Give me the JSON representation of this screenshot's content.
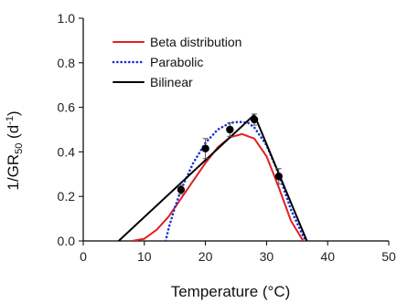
{
  "chart_data": {
    "type": "line",
    "xlabel": "Temperature (°C)",
    "ylabel_main": "1/GR",
    "ylabel_sub": "50",
    "ylabel_unit": " (d",
    "ylabel_sup": "-1",
    "ylabel_close": ")",
    "xlim": [
      0,
      50
    ],
    "ylim": [
      0,
      1.0
    ],
    "x_ticks": [
      0,
      10,
      20,
      30,
      40,
      50
    ],
    "x_tick_labels": [
      "0",
      "10",
      "20",
      "30",
      "40",
      "50"
    ],
    "y_ticks": [
      0.0,
      0.2,
      0.4,
      0.6,
      0.8,
      1.0
    ],
    "y_tick_labels": [
      "0.0",
      "0.2",
      "0.4",
      "0.6",
      "0.8",
      "1.0"
    ],
    "grid": false,
    "legend_position": "top-left",
    "series": [
      {
        "name": "Beta distribution",
        "style": "solid",
        "color": "#e02020",
        "x": [
          8,
          10,
          12,
          14,
          16,
          18,
          20,
          22,
          24,
          26,
          28,
          30,
          32,
          34,
          36
        ],
        "y": [
          0.0,
          0.01,
          0.05,
          0.11,
          0.19,
          0.27,
          0.35,
          0.42,
          0.465,
          0.48,
          0.46,
          0.38,
          0.24,
          0.09,
          0.0
        ]
      },
      {
        "name": "Parabolic",
        "style": "dotted",
        "color": "#1a2fd6",
        "x": [
          13.5,
          14,
          15,
          16,
          18,
          20,
          22,
          24,
          25.5,
          27,
          28,
          30,
          32,
          34,
          36,
          36.5
        ],
        "y": [
          0.0,
          0.06,
          0.15,
          0.23,
          0.35,
          0.44,
          0.5,
          0.53,
          0.535,
          0.53,
          0.51,
          0.43,
          0.3,
          0.14,
          0.02,
          0.0
        ]
      },
      {
        "name": "Bilinear",
        "style": "solid",
        "color": "#000000",
        "x": [
          5.8,
          28,
          36.6
        ],
        "y": [
          0.0,
          0.567,
          0.0
        ]
      }
    ],
    "points": {
      "x": [
        16,
        20,
        24,
        28,
        32
      ],
      "y": [
        0.23,
        0.415,
        0.5,
        0.545,
        0.29
      ],
      "err": [
        0.02,
        0.045,
        0.03,
        0.025,
        0.035
      ],
      "color": "#000000"
    }
  }
}
